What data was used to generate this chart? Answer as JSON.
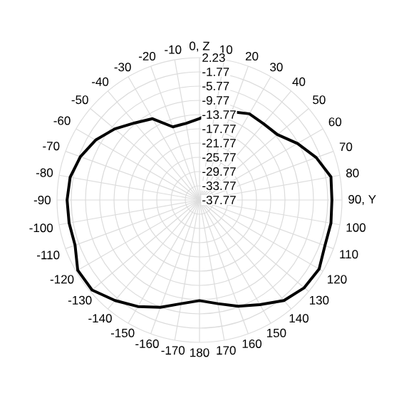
{
  "chart_data": {
    "type": "radar",
    "categories": [
      "0, Z",
      "10",
      "20",
      "30",
      "40",
      "50",
      "60",
      "70",
      "80",
      "90, Y",
      "100",
      "110",
      "120",
      "130",
      "140",
      "150",
      "160",
      "170",
      "180",
      "-170",
      "-160",
      "-150",
      "-140",
      "-130",
      "-120",
      "-110",
      "-100",
      "-90",
      "-80",
      "-70",
      "-60",
      "-50",
      "-40",
      "-30",
      "-20",
      "-10"
    ],
    "ylim": [
      -37.77,
      2.23
    ],
    "yticks": [
      2.23,
      -1.77,
      -5.77,
      -9.77,
      -13.77,
      -17.77,
      -21.77,
      -25.77,
      -29.77,
      -33.77,
      -37.77
    ],
    "grid": true,
    "series": [
      {
        "color": "#000000",
        "values": [
          -14.9,
          -12.4,
          -11.4,
          -9.8,
          -9.8,
          -9.2,
          -6.0,
          -2.9,
          -0.3,
          -0.6,
          -0.3,
          -0.3,
          1.0,
          0.6,
          -0.9,
          -3.8,
          -6.0,
          -8.2,
          -9.5,
          -8.2,
          -5.7,
          -3.2,
          -0.9,
          1.6,
          1.7,
          -0.6,
          -0.6,
          -0.6,
          -0.9,
          -2.2,
          -4.1,
          -6.7,
          -9.5,
          -11.4,
          -15.9,
          -15.9
        ]
      }
    ]
  }
}
